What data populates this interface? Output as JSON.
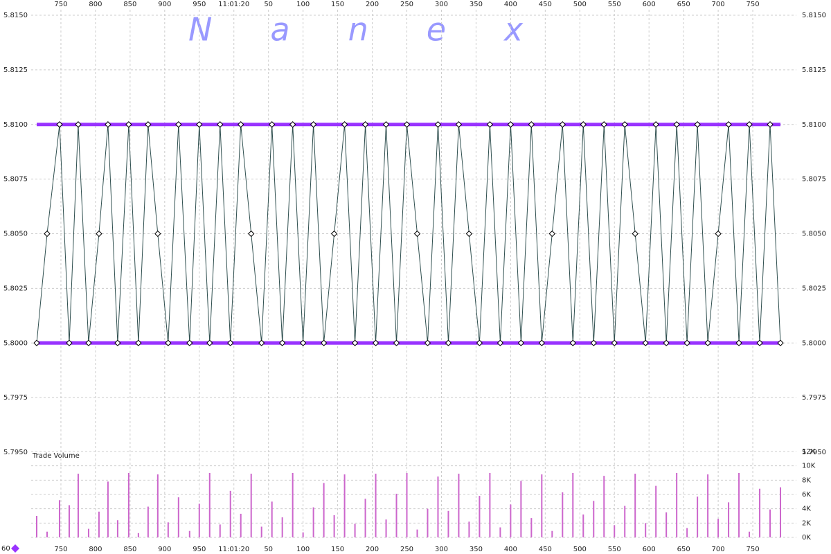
{
  "chart_data": [
    {
      "type": "line",
      "title": "Nanex",
      "x": [
        715,
        730,
        748,
        762,
        775,
        790,
        805,
        818,
        832,
        848,
        862,
        876,
        890,
        905,
        920,
        936,
        950,
        965,
        980,
        995,
        1010,
        1025,
        1040,
        1055,
        1070,
        1085,
        1100,
        1115,
        1130,
        1145,
        1160,
        1175,
        1190,
        1205,
        1220,
        1235,
        1250,
        1265,
        1280,
        1295,
        1310,
        1325,
        1340,
        1355,
        1370,
        1385,
        1400,
        1415,
        1430,
        1445,
        1460,
        1475,
        1490,
        1505,
        1520,
        1535,
        1550,
        1565,
        1580,
        1595,
        1610,
        1625,
        1640,
        1655,
        1670,
        1685,
        1700,
        1715,
        1730,
        1745,
        1760,
        1775,
        1790
      ],
      "values": [
        5.8,
        5.805,
        5.81,
        5.8,
        5.81,
        5.8,
        5.805,
        5.81,
        5.8,
        5.81,
        5.8,
        5.81,
        5.805,
        5.8,
        5.81,
        5.8,
        5.81,
        5.8,
        5.81,
        5.8,
        5.81,
        5.805,
        5.8,
        5.81,
        5.8,
        5.81,
        5.8,
        5.81,
        5.8,
        5.805,
        5.81,
        5.8,
        5.81,
        5.8,
        5.81,
        5.8,
        5.81,
        5.805,
        5.8,
        5.81,
        5.8,
        5.81,
        5.805,
        5.8,
        5.81,
        5.8,
        5.81,
        5.8,
        5.81,
        5.8,
        5.805,
        5.81,
        5.8,
        5.81,
        5.8,
        5.81,
        5.8,
        5.81,
        5.805,
        5.8,
        5.81,
        5.8,
        5.81,
        5.8,
        5.81,
        5.8,
        5.805,
        5.81,
        5.8,
        5.81,
        5.8,
        5.81,
        5.8
      ],
      "color": "#2f4f4f",
      "quotes": {
        "ask": 5.81,
        "bid": 5.8,
        "color": "#9933ff"
      },
      "xlim": [
        707,
        1813
      ],
      "xticks": [
        750,
        800,
        850,
        900,
        950,
        {
          "value": 1000,
          "label": "11:01:20"
        },
        {
          "value": 1050,
          "label": "50"
        },
        {
          "value": 1100,
          "label": "100"
        },
        {
          "value": 1150,
          "label": "150"
        },
        {
          "value": 1200,
          "label": "200"
        },
        {
          "value": 1250,
          "label": "250"
        },
        {
          "value": 1300,
          "label": "300"
        },
        {
          "value": 1350,
          "label": "350"
        },
        {
          "value": 1400,
          "label": "400"
        },
        {
          "value": 1450,
          "label": "450"
        },
        {
          "value": 1500,
          "label": "500"
        },
        {
          "value": 1550,
          "label": "550"
        },
        {
          "value": 1600,
          "label": "600"
        },
        {
          "value": 1650,
          "label": "650"
        },
        {
          "value": 1700,
          "label": "700"
        },
        {
          "value": 1750,
          "label": "750"
        }
      ],
      "ylim": [
        5.795,
        5.815
      ],
      "yticks": [
        {
          "value": 5.795,
          "label": "5.7950"
        },
        {
          "value": 5.7975,
          "label": "5.7975"
        },
        {
          "value": 5.8,
          "label": "5.8000"
        },
        {
          "value": 5.8025,
          "label": "5.8025"
        },
        {
          "value": 5.805,
          "label": "5.8050"
        },
        {
          "value": 5.8075,
          "label": "5.8075"
        },
        {
          "value": 5.81,
          "label": "5.8100"
        },
        {
          "value": 5.8125,
          "label": "5.8125"
        },
        {
          "value": 5.815,
          "label": "5.8150"
        }
      ],
      "grid": true
    },
    {
      "type": "bar",
      "title": "Trade Volume",
      "annotation": "60",
      "x": [
        715,
        730,
        748,
        762,
        775,
        790,
        805,
        818,
        832,
        848,
        862,
        876,
        890,
        905,
        920,
        936,
        950,
        965,
        980,
        995,
        1010,
        1025,
        1040,
        1055,
        1070,
        1085,
        1100,
        1115,
        1130,
        1145,
        1160,
        1175,
        1190,
        1205,
        1220,
        1235,
        1250,
        1265,
        1280,
        1295,
        1310,
        1325,
        1340,
        1355,
        1370,
        1385,
        1400,
        1415,
        1430,
        1445,
        1460,
        1475,
        1490,
        1505,
        1520,
        1535,
        1550,
        1565,
        1580,
        1595,
        1610,
        1625,
        1640,
        1655,
        1670,
        1685,
        1700,
        1715,
        1730,
        1745,
        1760,
        1775,
        1790
      ],
      "values": [
        3000,
        800,
        5200,
        4500,
        8900,
        1200,
        3600,
        7800,
        2400,
        9000,
        600,
        4300,
        8800,
        2100,
        5600,
        900,
        4700,
        9000,
        1800,
        6500,
        3300,
        8900,
        1500,
        5000,
        2800,
        9000,
        700,
        4200,
        7600,
        3100,
        8800,
        1900,
        5400,
        8900,
        2500,
        6100,
        9000,
        1100,
        4000,
        8500,
        3700,
        8900,
        2200,
        5800,
        9000,
        1400,
        4600,
        7900,
        2700,
        8800,
        900,
        6300,
        9000,
        3200,
        5100,
        8600,
        1700,
        4400,
        8900,
        2000,
        7200,
        3500,
        9000,
        1300,
        5700,
        8800,
        2600,
        4900,
        9000,
        800,
        6800,
        3900,
        7000
      ],
      "color": "#cc66cc",
      "ylim": [
        0,
        12000
      ],
      "yticks": [
        {
          "value": 0,
          "label": "0K"
        },
        {
          "value": 2000,
          "label": "2K"
        },
        {
          "value": 4000,
          "label": "4K"
        },
        {
          "value": 6000,
          "label": "6K"
        },
        {
          "value": 8000,
          "label": "8K"
        },
        {
          "value": 10000,
          "label": "10K"
        },
        {
          "value": 12000,
          "label": "12K"
        }
      ],
      "grid": true
    }
  ]
}
